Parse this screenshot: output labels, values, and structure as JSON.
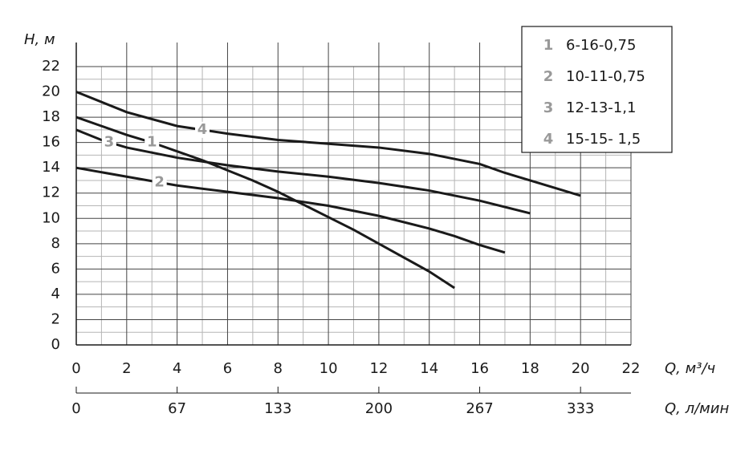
{
  "chart_data": {
    "type": "line",
    "y_label": "H, м",
    "x_label": "Q, м³/ч",
    "x2_label": "Q, л/мин",
    "xlim": [
      0,
      22
    ],
    "xticks": [
      0,
      2,
      4,
      6,
      8,
      10,
      12,
      14,
      16,
      18,
      20,
      22
    ],
    "ylim": [
      0,
      22
    ],
    "yticks": [
      0,
      2,
      4,
      6,
      8,
      10,
      12,
      14,
      16,
      18,
      20,
      22
    ],
    "x2lim": [
      0,
      366.667
    ],
    "x2ticks": [
      0,
      {
        "value": 66.667,
        "label": "67"
      },
      {
        "value": 133.333,
        "label": "133"
      },
      200,
      {
        "value": 266.667,
        "label": "267"
      },
      {
        "value": 333.333,
        "label": "333"
      }
    ],
    "grid": true,
    "legend": "upper right",
    "series": [
      {
        "label": "1",
        "name": "6-16-0,75",
        "color": "#1a1a1a",
        "x": [
          0,
          1,
          2,
          3,
          4,
          5,
          6,
          7,
          8,
          9,
          10,
          11,
          12,
          13,
          14,
          15
        ],
        "values": [
          18,
          17.3,
          16.6,
          16,
          15.3,
          14.6,
          13.8,
          13,
          12.1,
          11.1,
          10.1,
          9.1,
          8,
          6.9,
          5.8,
          4.5
        ]
      },
      {
        "label": "2",
        "name": "10-11-0,75",
        "color": "#1a1a1a",
        "x": [
          0,
          2,
          4,
          6,
          8,
          10,
          12,
          14,
          15,
          16,
          17
        ],
        "values": [
          14,
          13.3,
          12.6,
          12.1,
          11.6,
          11,
          10.2,
          9.2,
          8.6,
          7.9,
          7.3
        ]
      },
      {
        "label": "3",
        "name": "12-13-1,1",
        "color": "#1a1a1a",
        "x": [
          0,
          1,
          2,
          4,
          6,
          8,
          10,
          12,
          14,
          16,
          18
        ],
        "values": [
          17,
          16.2,
          15.6,
          14.8,
          14.2,
          13.7,
          13.3,
          12.8,
          12.2,
          11.4,
          10.4
        ]
      },
      {
        "label": "4",
        "name": "15-15- 1,5",
        "color": "#1a1a1a",
        "x": [
          0,
          2,
          4,
          6,
          8,
          10,
          12,
          14,
          16,
          17,
          18,
          20
        ],
        "values": [
          20,
          18.4,
          17.3,
          16.7,
          16.2,
          15.9,
          15.6,
          15.1,
          14.3,
          13.6,
          13,
          11.8
        ]
      }
    ]
  }
}
